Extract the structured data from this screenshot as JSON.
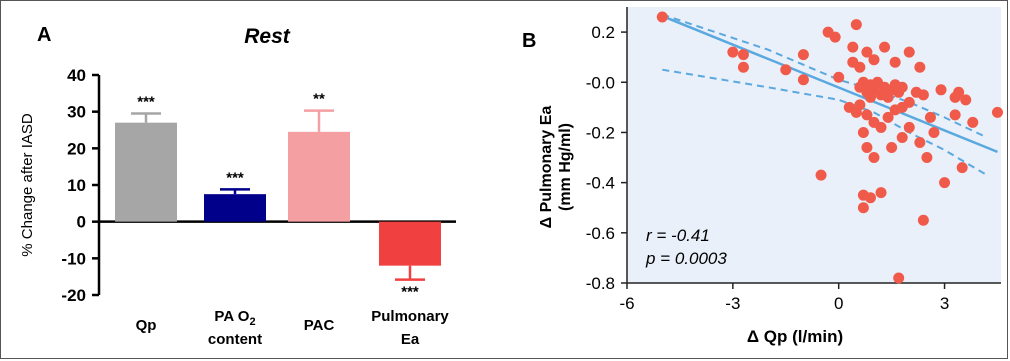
{
  "panel_a": {
    "label": "A",
    "title": "Rest",
    "ylabel": "% Change after  IASD",
    "bar_labels": [
      {
        "lines": [
          "Qp"
        ]
      },
      {
        "lines": [
          "PA O",
          "content"
        ],
        "subscript": "2"
      },
      {
        "lines": [
          "PAC"
        ]
      },
      {
        "lines": [
          "Pulmonary",
          "Ea"
        ]
      }
    ]
  },
  "panel_b": {
    "label": "B",
    "ylabel_line1": "Δ Pulmonary Ea",
    "ylabel_line2": "(mm Hg/ml)",
    "xlabel": "Δ Qp (l/min)",
    "stat_r": "r = -0.41",
    "stat_p": "p = 0.0003"
  },
  "colors": {
    "qp": "#a6a6a6",
    "pa_o2": "#00008b",
    "pac": "#f4a0a3",
    "pulmonary_ea": "#f04040",
    "scatter_point": "#f05a4a",
    "fit_line": "#5aa8e0",
    "panel_b_bg": "#e9f0f9"
  },
  "chart_data": [
    {
      "type": "bar",
      "title": "Rest",
      "ylabel": "% Change after  IASD",
      "categories": [
        "Qp",
        "PA O2 content",
        "PAC",
        "Pulmonary Ea"
      ],
      "values": [
        27,
        7.5,
        24.5,
        -12
      ],
      "errors": [
        2.5,
        1.3,
        5.8,
        3.8
      ],
      "significance": [
        "***",
        "***",
        "**",
        "***"
      ],
      "bar_colors": [
        "#a6a6a6",
        "#00008b",
        "#f4a0a3",
        "#f04040"
      ],
      "ylim": [
        -20,
        40
      ],
      "yticks": [
        -20,
        -10,
        0,
        10,
        20,
        30,
        40
      ]
    },
    {
      "type": "scatter",
      "xlabel": "Δ Qp (l/min)",
      "ylabel": "Δ Pulmonary Ea (mm Hg/ml)",
      "xlim": [
        -6,
        4.6
      ],
      "ylim": [
        -0.8,
        0.3
      ],
      "xticks": [
        -6,
        -3,
        0,
        3
      ],
      "yticks": [
        -0.8,
        -0.6,
        -0.4,
        -0.2,
        -0.0,
        0.2
      ],
      "ytick_labels": [
        "-0.8",
        "-0.6",
        "-0.4",
        "-0.2",
        "-0.0",
        "0.2"
      ],
      "fit": {
        "slope": -0.057,
        "intercept": -0.021,
        "x_range": [
          -5,
          4.5
        ]
      },
      "ci_upper": [
        [
          -5,
          0.27
        ],
        [
          -2,
          0.13
        ],
        [
          0,
          0.01
        ],
        [
          1,
          -0.03
        ],
        [
          2,
          -0.08
        ],
        [
          3,
          -0.14
        ],
        [
          4.2,
          -0.22
        ]
      ],
      "ci_lower": [
        [
          -5,
          0.05
        ],
        [
          -2,
          -0.02
        ],
        [
          0,
          -0.07
        ],
        [
          1,
          -0.12
        ],
        [
          2,
          -0.2
        ],
        [
          3,
          -0.27
        ],
        [
          4.2,
          -0.37
        ]
      ],
      "stats": {
        "r": -0.41,
        "p": 0.0003
      },
      "points": [
        [
          -5,
          0.26
        ],
        [
          -3,
          0.12
        ],
        [
          -2.7,
          0.11
        ],
        [
          -2.7,
          0.06
        ],
        [
          -1.5,
          0.05
        ],
        [
          -1,
          0.11
        ],
        [
          -1,
          0.01
        ],
        [
          -0.3,
          0.2
        ],
        [
          -0.1,
          0.18
        ],
        [
          0,
          0.02
        ],
        [
          0.5,
          0.23
        ],
        [
          0.4,
          0.14
        ],
        [
          0.4,
          0.08
        ],
        [
          0.6,
          0.06
        ],
        [
          0.8,
          0.12
        ],
        [
          1.0,
          0.09
        ],
        [
          1.3,
          0.14
        ],
        [
          1.6,
          0.08
        ],
        [
          2.0,
          0.12
        ],
        [
          2.3,
          0.06
        ],
        [
          0.6,
          -0.02
        ],
        [
          0.7,
          0.0
        ],
        [
          0.8,
          -0.04
        ],
        [
          0.9,
          -0.01
        ],
        [
          1.0,
          -0.03
        ],
        [
          1.1,
          0.0
        ],
        [
          1.2,
          -0.05
        ],
        [
          1.3,
          -0.02
        ],
        [
          1.4,
          -0.06
        ],
        [
          1.5,
          -0.03
        ],
        [
          1.6,
          -0.01
        ],
        [
          1.7,
          -0.04
        ],
        [
          1.8,
          -0.02
        ],
        [
          0.9,
          -0.06
        ],
        [
          0.6,
          -0.09
        ],
        [
          0.3,
          -0.1
        ],
        [
          0.5,
          -0.12
        ],
        [
          0.8,
          -0.13
        ],
        [
          1.0,
          -0.16
        ],
        [
          1.2,
          -0.18
        ],
        [
          1.4,
          -0.14
        ],
        [
          1.6,
          -0.11
        ],
        [
          1.8,
          -0.1
        ],
        [
          2.0,
          -0.08
        ],
        [
          2.2,
          -0.04
        ],
        [
          2.4,
          -0.05
        ],
        [
          2.6,
          -0.14
        ],
        [
          2.9,
          -0.03
        ],
        [
          3.3,
          -0.06
        ],
        [
          3.4,
          -0.04
        ],
        [
          3.3,
          -0.13
        ],
        [
          3.6,
          -0.07
        ],
        [
          3.8,
          -0.16
        ],
        [
          4.5,
          -0.12
        ],
        [
          2.0,
          -0.18
        ],
        [
          2.3,
          -0.24
        ],
        [
          2.7,
          -0.2
        ],
        [
          0.7,
          -0.2
        ],
        [
          0.8,
          -0.26
        ],
        [
          1.0,
          -0.3
        ],
        [
          1.5,
          -0.26
        ],
        [
          1.8,
          -0.22
        ],
        [
          2.5,
          -0.3
        ],
        [
          3.0,
          -0.4
        ],
        [
          3.5,
          -0.34
        ],
        [
          -0.5,
          -0.37
        ],
        [
          0.7,
          -0.45
        ],
        [
          0.9,
          -0.46
        ],
        [
          0.7,
          -0.5
        ],
        [
          1.2,
          -0.44
        ],
        [
          2.4,
          -0.55
        ],
        [
          1.7,
          -0.78
        ]
      ]
    }
  ]
}
